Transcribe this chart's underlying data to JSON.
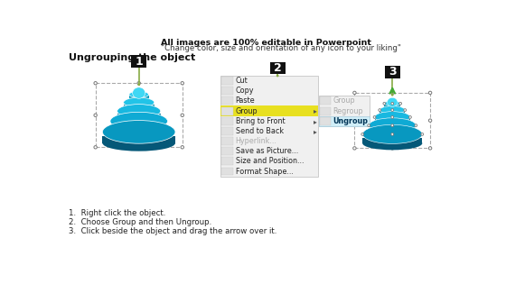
{
  "bg_color": "#ffffff",
  "title_line1": "All images are 100% editable in Powerpoint",
  "title_line2": "\"Change color, size and orientation of any icon to your liking\"",
  "section_title": "Ungrouping the object",
  "instructions": [
    "Right click the object.",
    "Choose Group and then Ungroup.",
    "Click beside the object and drag the arrow over it."
  ],
  "menu_items": [
    "Cut",
    "Copy",
    "Paste",
    "Group",
    "Bring to Front",
    "Send to Back",
    "Hyperlink...",
    "Save as Picture...",
    "Size and Position...",
    "Format Shape..."
  ],
  "submenu_items": [
    "Group",
    "Regroup",
    "Ungroup"
  ],
  "disc_colors_face": [
    "#2eccf0",
    "#22c4e8",
    "#18b8e0",
    "#0faad4",
    "#0898c0"
  ],
  "disc_colors_side": [
    "#0899ba",
    "#0888aa",
    "#077898",
    "#066888",
    "#055878"
  ],
  "disc_cap_color": "#40d8f4",
  "label_bg": "#111111",
  "label_fg": "#ffffff",
  "menu_bg": "#f0f0f0",
  "menu_border": "#cccccc",
  "menu_highlight": "#e8e020",
  "submenu_highlight_bg": "#d0eef8",
  "submenu_highlight_border": "#aaccdd",
  "connector_color": "#88aa44"
}
